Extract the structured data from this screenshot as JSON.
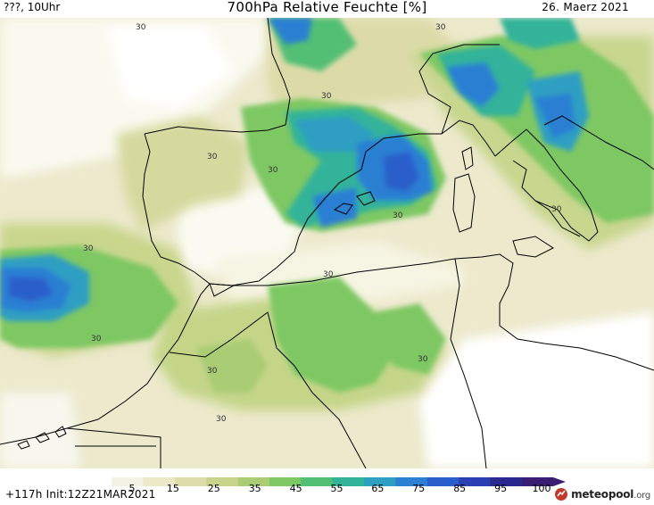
{
  "header": {
    "left_text": "???, 10Uhr",
    "title": "700hPa Relative Feuchte [%]",
    "date": "26. Maerz 2021"
  },
  "footer": {
    "init_text": "+117h Init:12Z21MAR2021",
    "scale_labels": [
      "5",
      "15",
      "25",
      "35",
      "45",
      "55",
      "65",
      "75",
      "85",
      "95",
      "100"
    ],
    "scale_colors": [
      "#ffffff",
      "#f4f2e2",
      "#ece8c8",
      "#dedcaa",
      "#c8d48a",
      "#a9cc74",
      "#7ec863",
      "#52bf74",
      "#33b39a",
      "#2f9fc2",
      "#2c7fd3",
      "#2a5ecb",
      "#2a3fb2",
      "#2a2a8e",
      "#3a1e74"
    ],
    "logo_brand": "meteopool",
    "logo_tld": ".org"
  },
  "map": {
    "contour_labels": [
      "30",
      "30",
      "30",
      "30",
      "30",
      "30",
      "30",
      "30",
      "30",
      "30",
      "30",
      "30",
      "30"
    ]
  }
}
